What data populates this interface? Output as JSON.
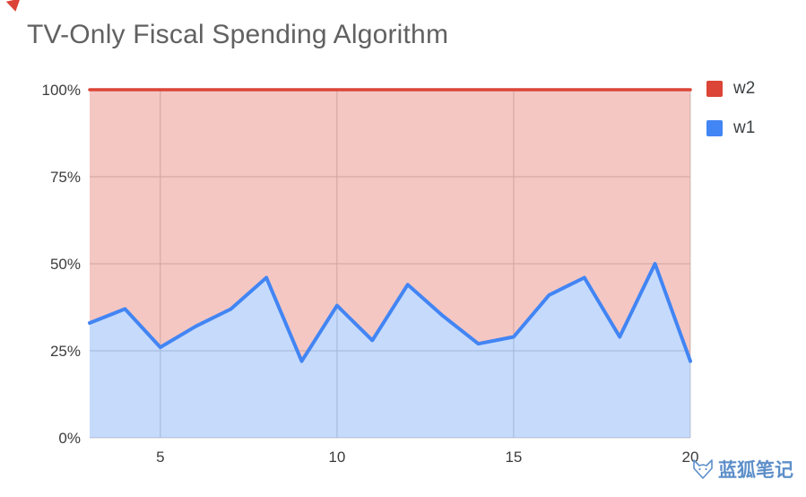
{
  "page": {
    "title": "TV-Only Fiscal Spending Algorithm",
    "background": "#ffffff"
  },
  "legend": {
    "items": [
      {
        "label": "w2",
        "color": "#db4437"
      },
      {
        "label": "w1",
        "color": "#4285f4"
      }
    ]
  },
  "watermark": {
    "text": "蓝狐笔记",
    "color": "#5d8fc9"
  },
  "chart_data": {
    "type": "area",
    "stacked": true,
    "title": "TV-Only Fiscal Spending Algorithm",
    "x": [
      3,
      4,
      5,
      6,
      7,
      8,
      9,
      10,
      11,
      12,
      13,
      14,
      15,
      16,
      17,
      18,
      19,
      20
    ],
    "series": [
      {
        "name": "w2",
        "color": "#db4437",
        "fill": "rgba(219,68,55,0.30)",
        "values": [
          67,
          63,
          74,
          68,
          63,
          54,
          78,
          62,
          72,
          56,
          65,
          73,
          71,
          59,
          54,
          71,
          50,
          78
        ]
      },
      {
        "name": "w1",
        "color": "#4285f4",
        "fill": "rgba(66,133,244,0.30)",
        "values": [
          33,
          37,
          26,
          32,
          37,
          46,
          22,
          38,
          28,
          44,
          35,
          27,
          29,
          41,
          46,
          29,
          50,
          22
        ]
      }
    ],
    "xlim": [
      3,
      20
    ],
    "ylim": [
      0,
      100
    ],
    "x_ticks": [
      5,
      10,
      15,
      20
    ],
    "y_ticks": [
      0,
      25,
      50,
      75,
      100
    ],
    "y_tick_labels": [
      "0%",
      "25%",
      "50%",
      "75%",
      "100%"
    ],
    "grid": true,
    "legend_position": "right",
    "gridline_color": "#cccccc",
    "tick_label_color": "#3c3c3c"
  }
}
